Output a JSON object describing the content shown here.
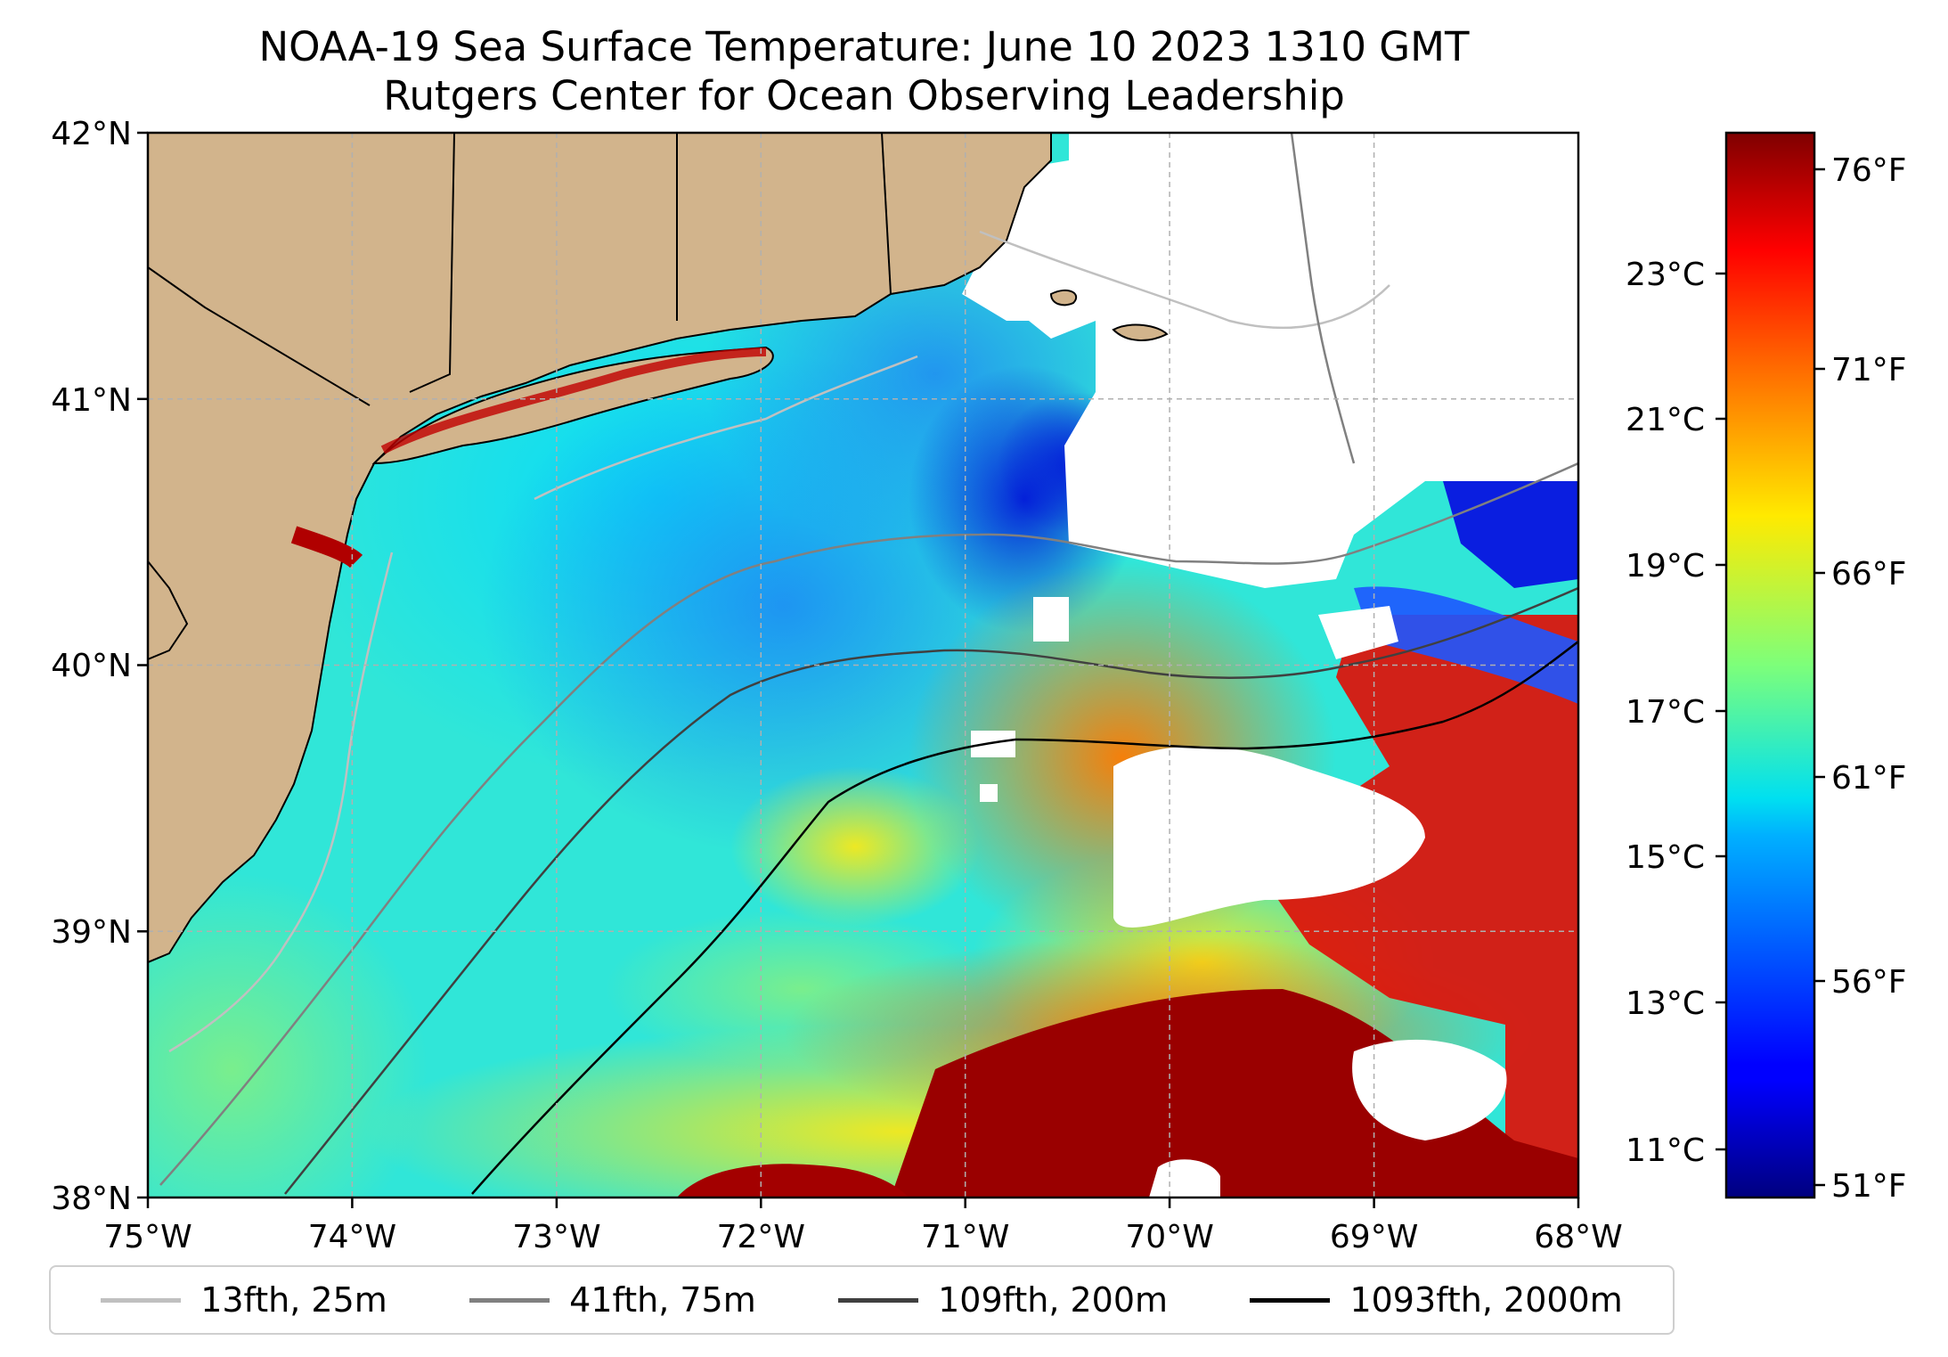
{
  "title": {
    "line1": "NOAA-19 Sea Surface Temperature: June 10 2023 1310 GMT",
    "line2": "Rutgers Center for Ocean Observing Leadership"
  },
  "map": {
    "lon_range": [
      -75,
      -68
    ],
    "lat_range": [
      38,
      42
    ],
    "x_ticks": [
      "75°W",
      "74°W",
      "73°W",
      "72°W",
      "71°W",
      "70°W",
      "69°W",
      "68°W"
    ],
    "y_ticks": [
      "38°N",
      "39°N",
      "40°N",
      "41°N",
      "42°N"
    ],
    "grid": true,
    "land_color": "#d2b48c"
  },
  "colorbar": {
    "colormap": "jet",
    "celsius_ticks": [
      "11°C",
      "13°C",
      "15°C",
      "17°C",
      "19°C",
      "21°C",
      "23°C"
    ],
    "fahrenheit_ticks": [
      "51°F",
      "56°F",
      "61°F",
      "66°F",
      "71°F",
      "76°F"
    ]
  },
  "legend": [
    {
      "label": "13fth, 25m",
      "color": "#c0c0c0"
    },
    {
      "label": "41fth, 75m",
      "color": "#808080"
    },
    {
      "label": "109fth, 200m",
      "color": "#404040"
    },
    {
      "label": "1093fth, 2000m",
      "color": "#000000"
    }
  ]
}
